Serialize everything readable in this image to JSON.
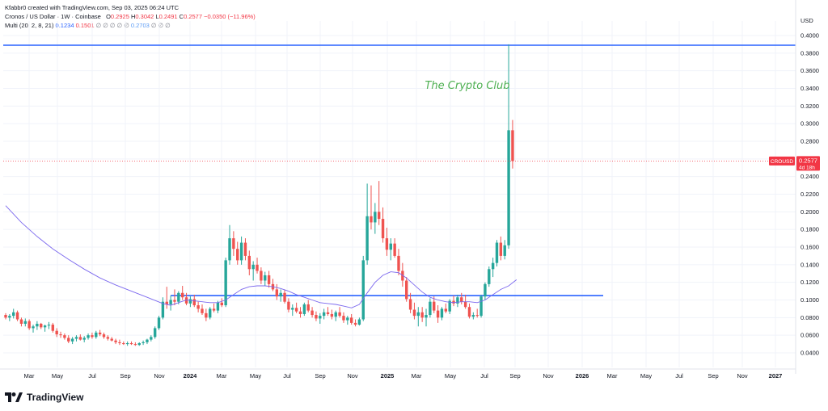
{
  "header": {
    "created_by": "Kfabbr0 created with TradingView.com, Sep 03, 2025 06:24 UTC",
    "symbol": "Cronos / US Dollar · 1W · Coinbase",
    "ohlc": {
      "o_label": "O",
      "o": "0.2925",
      "h_label": "H",
      "h": "0.3042",
      "l_label": "L",
      "l": "0.2491",
      "c_label": "C",
      "c": "0.2577",
      "change": "−0.0350 (−11.96%)"
    },
    "indicator": {
      "name": "Multi (20, 2, 8, 21)",
      "v1": "0.1234",
      "v2": "0.1501",
      "v3": "0.2703",
      "empty": "∅"
    }
  },
  "watermark": "The Crypto Club",
  "price_axis": {
    "currency": "USD",
    "ticks": [
      "0.4000",
      "0.3800",
      "0.3600",
      "0.3400",
      "0.3200",
      "0.3000",
      "0.2800",
      "0.2600",
      "0.2400",
      "0.2200",
      "0.2000",
      "0.1800",
      "0.1600",
      "0.1400",
      "0.1200",
      "0.1000",
      "0.0800",
      "0.0600",
      "0.0400"
    ],
    "current_symbol": "CROUSD",
    "current_price": "0.2577",
    "countdown": "4d 18h"
  },
  "time_axis": {
    "labels": [
      "Mar",
      "May",
      "Jul",
      "Sep",
      "Nov",
      "2024",
      "Mar",
      "May",
      "Jul",
      "Sep",
      "Nov",
      "2025",
      "Mar",
      "May",
      "Jul",
      "Sep",
      "Nov",
      "2026",
      "Mar",
      "May",
      "Jul",
      "Sep",
      "Nov",
      "2027"
    ]
  },
  "footer": {
    "brand": "TradingView"
  },
  "colors": {
    "up": "#26a69a",
    "down": "#ef5350",
    "hline": "#2962ff",
    "ma": "#7b68ee",
    "watermark": "#4caf50",
    "price_label": "#f23645"
  },
  "chart_data": {
    "type": "candlestick",
    "title": "Cronos / US Dollar · 1W · Coinbase",
    "ylim": [
      0.02,
      0.41
    ],
    "y_ticks": [
      0.04,
      0.06,
      0.08,
      0.1,
      0.12,
      0.14,
      0.16,
      0.18,
      0.2,
      0.22,
      0.24,
      0.26,
      0.28,
      0.3,
      0.32,
      0.34,
      0.36,
      0.38,
      0.4
    ],
    "current_price": 0.2577,
    "horizontal_lines": [
      {
        "price": 0.389,
        "from_week": 0,
        "to_week": "end"
      },
      {
        "price": 0.105,
        "from_week": 42,
        "to_week": 150
      }
    ],
    "candles": [
      [
        0.083,
        0.085,
        0.078,
        0.08
      ],
      [
        0.08,
        0.084,
        0.076,
        0.082
      ],
      [
        0.082,
        0.09,
        0.079,
        0.086
      ],
      [
        0.086,
        0.088,
        0.076,
        0.078
      ],
      [
        0.078,
        0.08,
        0.07,
        0.073
      ],
      [
        0.073,
        0.079,
        0.07,
        0.076
      ],
      [
        0.076,
        0.078,
        0.066,
        0.068
      ],
      [
        0.068,
        0.072,
        0.063,
        0.07
      ],
      [
        0.07,
        0.076,
        0.066,
        0.073
      ],
      [
        0.073,
        0.074,
        0.067,
        0.069
      ],
      [
        0.069,
        0.072,
        0.064,
        0.071
      ],
      [
        0.071,
        0.075,
        0.067,
        0.072
      ],
      [
        0.072,
        0.074,
        0.063,
        0.065
      ],
      [
        0.065,
        0.068,
        0.058,
        0.061
      ],
      [
        0.061,
        0.064,
        0.057,
        0.06
      ],
      [
        0.06,
        0.062,
        0.055,
        0.057
      ],
      [
        0.057,
        0.06,
        0.051,
        0.053
      ],
      [
        0.053,
        0.058,
        0.05,
        0.056
      ],
      [
        0.056,
        0.06,
        0.053,
        0.058
      ],
      [
        0.058,
        0.061,
        0.054,
        0.055
      ],
      [
        0.055,
        0.059,
        0.052,
        0.057
      ],
      [
        0.057,
        0.062,
        0.055,
        0.06
      ],
      [
        0.06,
        0.063,
        0.056,
        0.058
      ],
      [
        0.058,
        0.065,
        0.056,
        0.063
      ],
      [
        0.063,
        0.066,
        0.059,
        0.061
      ],
      [
        0.061,
        0.063,
        0.056,
        0.058
      ],
      [
        0.058,
        0.06,
        0.054,
        0.056
      ],
      [
        0.056,
        0.058,
        0.053,
        0.054
      ],
      [
        0.054,
        0.056,
        0.05,
        0.052
      ],
      [
        0.052,
        0.055,
        0.049,
        0.051
      ],
      [
        0.051,
        0.053,
        0.049,
        0.05
      ],
      [
        0.05,
        0.053,
        0.048,
        0.051
      ],
      [
        0.051,
        0.053,
        0.049,
        0.05
      ],
      [
        0.05,
        0.052,
        0.048,
        0.049
      ],
      [
        0.049,
        0.052,
        0.048,
        0.051
      ],
      [
        0.051,
        0.054,
        0.049,
        0.052
      ],
      [
        0.052,
        0.056,
        0.05,
        0.055
      ],
      [
        0.055,
        0.06,
        0.053,
        0.058
      ],
      [
        0.058,
        0.07,
        0.056,
        0.068
      ],
      [
        0.068,
        0.082,
        0.066,
        0.08
      ],
      [
        0.08,
        0.103,
        0.078,
        0.098
      ],
      [
        0.098,
        0.115,
        0.09,
        0.095
      ],
      [
        0.095,
        0.105,
        0.088,
        0.1
      ],
      [
        0.1,
        0.112,
        0.094,
        0.098
      ],
      [
        0.098,
        0.11,
        0.095,
        0.108
      ],
      [
        0.108,
        0.116,
        0.1,
        0.103
      ],
      [
        0.103,
        0.108,
        0.094,
        0.096
      ],
      [
        0.096,
        0.104,
        0.092,
        0.101
      ],
      [
        0.101,
        0.106,
        0.092,
        0.094
      ],
      [
        0.094,
        0.098,
        0.086,
        0.09
      ],
      [
        0.09,
        0.095,
        0.083,
        0.085
      ],
      [
        0.085,
        0.09,
        0.076,
        0.08
      ],
      [
        0.08,
        0.092,
        0.078,
        0.09
      ],
      [
        0.09,
        0.096,
        0.086,
        0.088
      ],
      [
        0.088,
        0.099,
        0.085,
        0.097
      ],
      [
        0.097,
        0.102,
        0.092,
        0.094
      ],
      [
        0.094,
        0.148,
        0.092,
        0.145
      ],
      [
        0.145,
        0.185,
        0.14,
        0.17
      ],
      [
        0.17,
        0.178,
        0.15,
        0.158
      ],
      [
        0.158,
        0.166,
        0.14,
        0.145
      ],
      [
        0.145,
        0.172,
        0.14,
        0.165
      ],
      [
        0.165,
        0.17,
        0.145,
        0.15
      ],
      [
        0.15,
        0.156,
        0.128,
        0.135
      ],
      [
        0.135,
        0.144,
        0.122,
        0.14
      ],
      [
        0.14,
        0.148,
        0.13,
        0.133
      ],
      [
        0.133,
        0.137,
        0.118,
        0.122
      ],
      [
        0.122,
        0.132,
        0.116,
        0.128
      ],
      [
        0.128,
        0.133,
        0.114,
        0.118
      ],
      [
        0.118,
        0.124,
        0.11,
        0.112
      ],
      [
        0.112,
        0.118,
        0.1,
        0.104
      ],
      [
        0.104,
        0.112,
        0.098,
        0.108
      ],
      [
        0.108,
        0.112,
        0.096,
        0.098
      ],
      [
        0.098,
        0.102,
        0.086,
        0.089
      ],
      [
        0.089,
        0.095,
        0.082,
        0.091
      ],
      [
        0.091,
        0.097,
        0.085,
        0.087
      ],
      [
        0.087,
        0.092,
        0.08,
        0.084
      ],
      [
        0.084,
        0.097,
        0.082,
        0.095
      ],
      [
        0.095,
        0.1,
        0.086,
        0.088
      ],
      [
        0.088,
        0.092,
        0.08,
        0.083
      ],
      [
        0.083,
        0.087,
        0.076,
        0.079
      ],
      [
        0.079,
        0.085,
        0.073,
        0.082
      ],
      [
        0.082,
        0.09,
        0.078,
        0.086
      ],
      [
        0.086,
        0.092,
        0.082,
        0.084
      ],
      [
        0.084,
        0.089,
        0.078,
        0.081
      ],
      [
        0.081,
        0.088,
        0.076,
        0.086
      ],
      [
        0.086,
        0.092,
        0.08,
        0.082
      ],
      [
        0.082,
        0.086,
        0.074,
        0.077
      ],
      [
        0.077,
        0.082,
        0.072,
        0.08
      ],
      [
        0.08,
        0.084,
        0.072,
        0.074
      ],
      [
        0.074,
        0.078,
        0.07,
        0.072
      ],
      [
        0.072,
        0.08,
        0.071,
        0.078
      ],
      [
        0.078,
        0.15,
        0.076,
        0.145
      ],
      [
        0.145,
        0.232,
        0.14,
        0.195
      ],
      [
        0.195,
        0.23,
        0.18,
        0.188
      ],
      [
        0.188,
        0.21,
        0.175,
        0.2
      ],
      [
        0.2,
        0.235,
        0.185,
        0.192
      ],
      [
        0.192,
        0.205,
        0.165,
        0.17
      ],
      [
        0.17,
        0.182,
        0.15,
        0.157
      ],
      [
        0.157,
        0.17,
        0.145,
        0.164
      ],
      [
        0.164,
        0.17,
        0.148,
        0.15
      ],
      [
        0.15,
        0.158,
        0.128,
        0.133
      ],
      [
        0.133,
        0.142,
        0.115,
        0.122
      ],
      [
        0.122,
        0.126,
        0.098,
        0.101
      ],
      [
        0.101,
        0.108,
        0.085,
        0.089
      ],
      [
        0.089,
        0.097,
        0.078,
        0.082
      ],
      [
        0.082,
        0.092,
        0.07,
        0.086
      ],
      [
        0.086,
        0.092,
        0.075,
        0.08
      ],
      [
        0.08,
        0.09,
        0.07,
        0.083
      ],
      [
        0.083,
        0.102,
        0.08,
        0.098
      ],
      [
        0.098,
        0.104,
        0.085,
        0.088
      ],
      [
        0.088,
        0.094,
        0.074,
        0.08
      ],
      [
        0.08,
        0.092,
        0.077,
        0.09
      ],
      [
        0.09,
        0.096,
        0.085,
        0.087
      ],
      [
        0.087,
        0.101,
        0.084,
        0.099
      ],
      [
        0.099,
        0.105,
        0.093,
        0.096
      ],
      [
        0.096,
        0.106,
        0.092,
        0.103
      ],
      [
        0.103,
        0.108,
        0.095,
        0.098
      ],
      [
        0.098,
        0.106,
        0.09,
        0.092
      ],
      [
        0.092,
        0.096,
        0.079,
        0.081
      ],
      [
        0.081,
        0.086,
        0.078,
        0.083
      ],
      [
        0.083,
        0.09,
        0.08,
        0.082
      ],
      [
        0.082,
        0.106,
        0.08,
        0.104
      ],
      [
        0.104,
        0.12,
        0.1,
        0.118
      ],
      [
        0.118,
        0.138,
        0.115,
        0.135
      ],
      [
        0.135,
        0.148,
        0.126,
        0.142
      ],
      [
        0.142,
        0.168,
        0.138,
        0.165
      ],
      [
        0.165,
        0.172,
        0.145,
        0.15
      ],
      [
        0.15,
        0.168,
        0.146,
        0.162
      ],
      [
        0.162,
        0.39,
        0.158,
        0.2925
      ],
      [
        0.2925,
        0.3042,
        0.2491,
        0.2577
      ]
    ],
    "indicator_series": {
      "name": "Multi (20, 2, 8, 21)",
      "points": [
        [
          0,
          0.207
        ],
        [
          4,
          0.188
        ],
        [
          8,
          0.172
        ],
        [
          12,
          0.158
        ],
        [
          16,
          0.146
        ],
        [
          20,
          0.135
        ],
        [
          24,
          0.125
        ],
        [
          28,
          0.117
        ],
        [
          32,
          0.11
        ],
        [
          36,
          0.103
        ],
        [
          40,
          0.096
        ],
        [
          42,
          0.094
        ],
        [
          44,
          0.097
        ],
        [
          46,
          0.1
        ],
        [
          48,
          0.099
        ],
        [
          50,
          0.098
        ],
        [
          52,
          0.097
        ],
        [
          54,
          0.097
        ],
        [
          56,
          0.1
        ],
        [
          58,
          0.106
        ],
        [
          60,
          0.112
        ],
        [
          62,
          0.115
        ],
        [
          64,
          0.116
        ],
        [
          66,
          0.116
        ],
        [
          68,
          0.115
        ],
        [
          70,
          0.113
        ],
        [
          72,
          0.11
        ],
        [
          74,
          0.106
        ],
        [
          76,
          0.103
        ],
        [
          78,
          0.1
        ],
        [
          80,
          0.097
        ],
        [
          82,
          0.096
        ],
        [
          84,
          0.095
        ],
        [
          86,
          0.093
        ],
        [
          88,
          0.091
        ],
        [
          90,
          0.095
        ],
        [
          92,
          0.108
        ],
        [
          94,
          0.12
        ],
        [
          96,
          0.128
        ],
        [
          98,
          0.132
        ],
        [
          100,
          0.131
        ],
        [
          102,
          0.125
        ],
        [
          104,
          0.117
        ],
        [
          106,
          0.109
        ],
        [
          108,
          0.103
        ],
        [
          110,
          0.1
        ],
        [
          112,
          0.098
        ],
        [
          114,
          0.097
        ],
        [
          116,
          0.098
        ],
        [
          118,
          0.098
        ],
        [
          120,
          0.097
        ],
        [
          122,
          0.1
        ],
        [
          124,
          0.106
        ],
        [
          126,
          0.112
        ],
        [
          128,
          0.116
        ],
        [
          130,
          0.123
        ]
      ]
    },
    "x_labels": [
      "Mar",
      "May",
      "Jul",
      "Sep",
      "Nov",
      "2024",
      "Mar",
      "May",
      "Jul",
      "Sep",
      "Nov",
      "2025",
      "Mar",
      "May",
      "Jul",
      "Sep",
      "Nov",
      "2026",
      "Mar",
      "May",
      "Jul",
      "Sep",
      "Nov",
      "2027"
    ]
  }
}
